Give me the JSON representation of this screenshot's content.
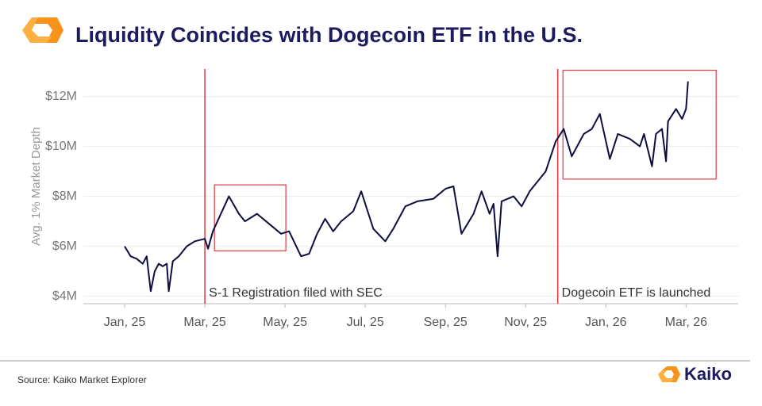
{
  "chart_data": {
    "type": "line",
    "title": "Liquidity Coincides with Dogecoin ETF in the U.S.",
    "ylabel": "Avg. 1% Market Depth",
    "source": "Source: Kaiko Market Explorer",
    "brand": "Kaiko",
    "color": "#0d0d3f",
    "x": [
      0,
      0.15,
      0.3,
      0.45,
      0.55,
      0.65,
      0.75,
      0.85,
      0.95,
      1.05,
      1.1,
      1.2,
      1.35,
      1.55,
      1.75,
      2.0,
      2.08,
      2.2,
      2.4,
      2.6,
      2.85,
      3.0,
      3.3,
      3.6,
      3.9,
      4.1,
      4.4,
      4.6,
      4.8,
      5.0,
      5.2,
      5.4,
      5.7,
      5.9,
      6.2,
      6.5,
      6.7,
      7.0,
      7.3,
      7.7,
      8.0,
      8.2,
      8.4,
      8.7,
      8.9,
      9.1,
      9.2,
      9.3,
      9.4,
      9.7,
      9.9,
      10.1,
      10.5,
      10.75,
      10.95,
      11.15,
      11.45,
      11.65,
      11.85,
      12.1,
      12.3,
      12.6,
      12.85,
      12.95,
      13.15,
      13.25,
      13.4,
      13.5,
      13.55,
      13.75,
      13.9,
      14.0,
      14.05
    ],
    "values": [
      6.0,
      5.6,
      5.5,
      5.3,
      5.6,
      4.2,
      5.0,
      5.3,
      5.2,
      5.3,
      4.2,
      5.4,
      5.6,
      6.0,
      6.2,
      6.3,
      5.9,
      6.6,
      7.3,
      8.0,
      7.3,
      7.0,
      7.3,
      6.9,
      6.5,
      6.6,
      5.6,
      5.7,
      6.5,
      7.1,
      6.6,
      7.0,
      7.4,
      8.2,
      6.7,
      6.2,
      6.7,
      7.6,
      7.8,
      7.9,
      8.3,
      8.4,
      6.5,
      7.3,
      8.2,
      7.3,
      7.7,
      5.6,
      7.8,
      8.0,
      7.6,
      8.2,
      9.0,
      10.2,
      10.7,
      9.6,
      10.5,
      10.7,
      11.3,
      9.5,
      10.5,
      10.3,
      10.0,
      10.5,
      9.2,
      10.5,
      10.7,
      9.4,
      11.0,
      11.5,
      11.1,
      11.5,
      12.6
    ],
    "xlim": [
      -1.03,
      15.3
    ],
    "xticks": [
      {
        "value": 0,
        "label": "Jan, 25"
      },
      {
        "value": 2,
        "label": "Mar, 25"
      },
      {
        "value": 4,
        "label": "May, 25"
      },
      {
        "value": 6,
        "label": "Jul, 25"
      },
      {
        "value": 8,
        "label": "Sep, 25"
      },
      {
        "value": 10,
        "label": "Nov, 25"
      },
      {
        "value": 12,
        "label": "Jan, 26"
      },
      {
        "value": 14,
        "label": "Mar, 26"
      }
    ],
    "ylim": [
      3.7,
      13.1
    ],
    "yticks": [
      {
        "value": 4,
        "label": "$4M"
      },
      {
        "value": 6,
        "label": "$6M"
      },
      {
        "value": 8,
        "label": "$8M"
      },
      {
        "value": 10,
        "label": "$10M"
      },
      {
        "value": 12,
        "label": "$12M"
      }
    ],
    "grid": true,
    "events": [
      {
        "x": 2.0,
        "text": "S-1 Registration filed with SEC",
        "color": "#e0383e"
      },
      {
        "x": 10.8,
        "text": "Dogecoin ETF is launched",
        "color": "#e0383e"
      }
    ],
    "highlights": [
      {
        "x": [
          2.24,
          4.02
        ],
        "y": [
          5.82,
          8.46
        ]
      },
      {
        "x": [
          10.93,
          14.75
        ],
        "y": [
          8.69,
          13.05
        ]
      }
    ]
  }
}
